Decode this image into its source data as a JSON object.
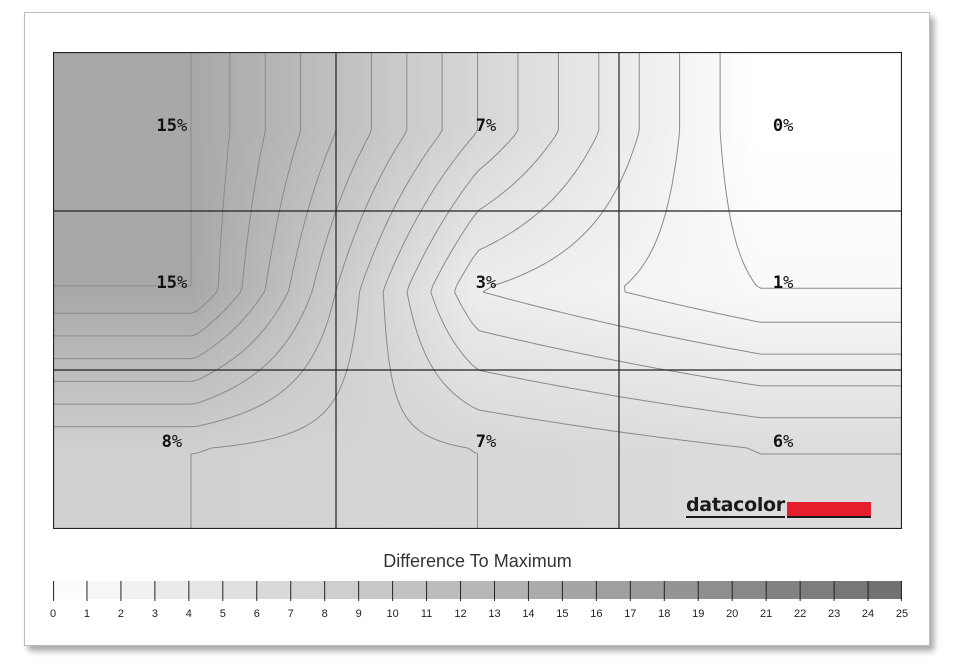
{
  "chart_data": {
    "type": "heatmap",
    "grid": {
      "rows": 3,
      "cols": 3
    },
    "cells": [
      [
        15,
        7,
        0
      ],
      [
        15,
        3,
        1
      ],
      [
        8,
        7,
        6
      ]
    ],
    "unit": "%",
    "legend": {
      "title": "Difference To Maximum",
      "min": 0,
      "max": 25,
      "ticks": [
        0,
        1,
        2,
        3,
        4,
        5,
        6,
        7,
        8,
        9,
        10,
        11,
        12,
        13,
        14,
        15,
        16,
        17,
        18,
        19,
        20,
        21,
        22,
        23,
        24,
        25
      ]
    },
    "colors": {
      "min": "#ffffff",
      "max": "#6e6e6e",
      "contour": "#8a8a8a",
      "grid": "#222222"
    }
  },
  "logo": {
    "text": "datacolor",
    "accent": "#e41e2c"
  }
}
